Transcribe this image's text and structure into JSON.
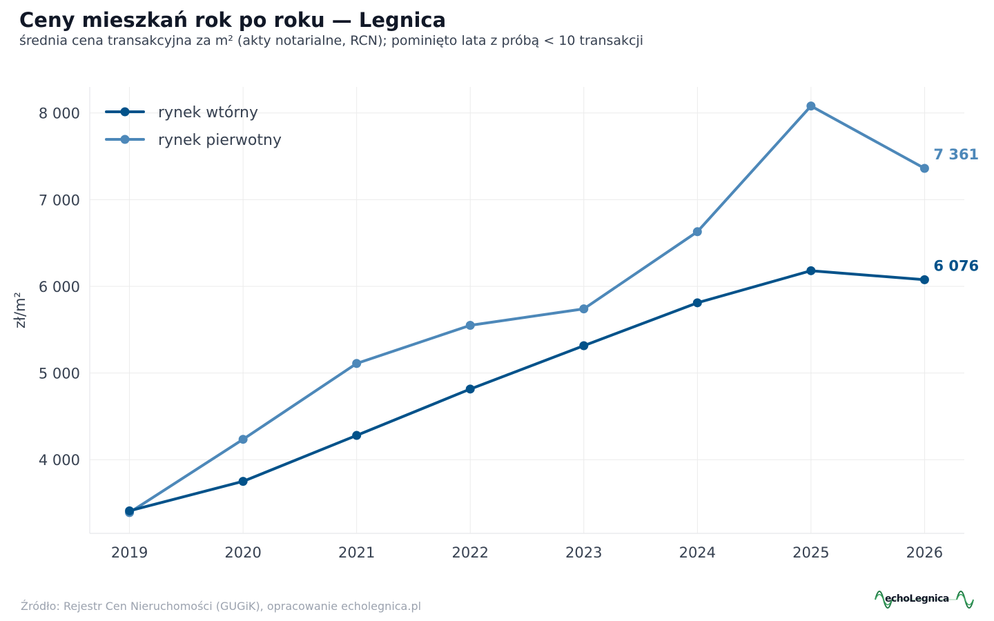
{
  "header": {
    "title": "Ceny mieszkań rok po roku — Legnica",
    "subtitle": "średnia cena transakcyjna za m² (akty notarialne, RCN); pominięto lata z próbą < 10 transakcji"
  },
  "footer": {
    "source": "Źródło: Rejestr Cen Nieruchomości (GUGiK), opracowanie echolegnica.pl",
    "logo_text": "echoLegnica"
  },
  "chart_data": {
    "type": "line",
    "title": "Ceny mieszkań rok po roku — Legnica",
    "subtitle": "średnia cena transakcyjna za m² (akty notarialne, RCN); pominięto lata z próbą < 10 transakcji",
    "xlabel": "",
    "ylabel": "zł/m²",
    "x": [
      2019,
      2020,
      2021,
      2022,
      2023,
      2024,
      2025,
      2026
    ],
    "x_tick_labels": [
      "2019",
      "2020",
      "2021",
      "2022",
      "2023",
      "2024",
      "2025",
      "2026"
    ],
    "y_ticks": [
      4000,
      5000,
      6000,
      7000,
      8000
    ],
    "y_tick_labels": [
      "4 000",
      "5 000",
      "6 000",
      "7 000",
      "8 000"
    ],
    "xlim": [
      2018.65,
      2026.35
    ],
    "ylim": [
      3150,
      8300
    ],
    "grid": true,
    "legend_position": "top-left",
    "series": [
      {
        "name": "rynek wtórny",
        "color": "#02528a",
        "values": [
          3410,
          3750,
          4280,
          4815,
          5315,
          5810,
          6180,
          6076
        ],
        "end_label": "6 076"
      },
      {
        "name": "rynek pierwotny",
        "color": "#4d88b9",
        "values": [
          3390,
          4235,
          5110,
          5550,
          5740,
          6630,
          8080,
          7361
        ],
        "end_label": "7 361"
      }
    ]
  }
}
